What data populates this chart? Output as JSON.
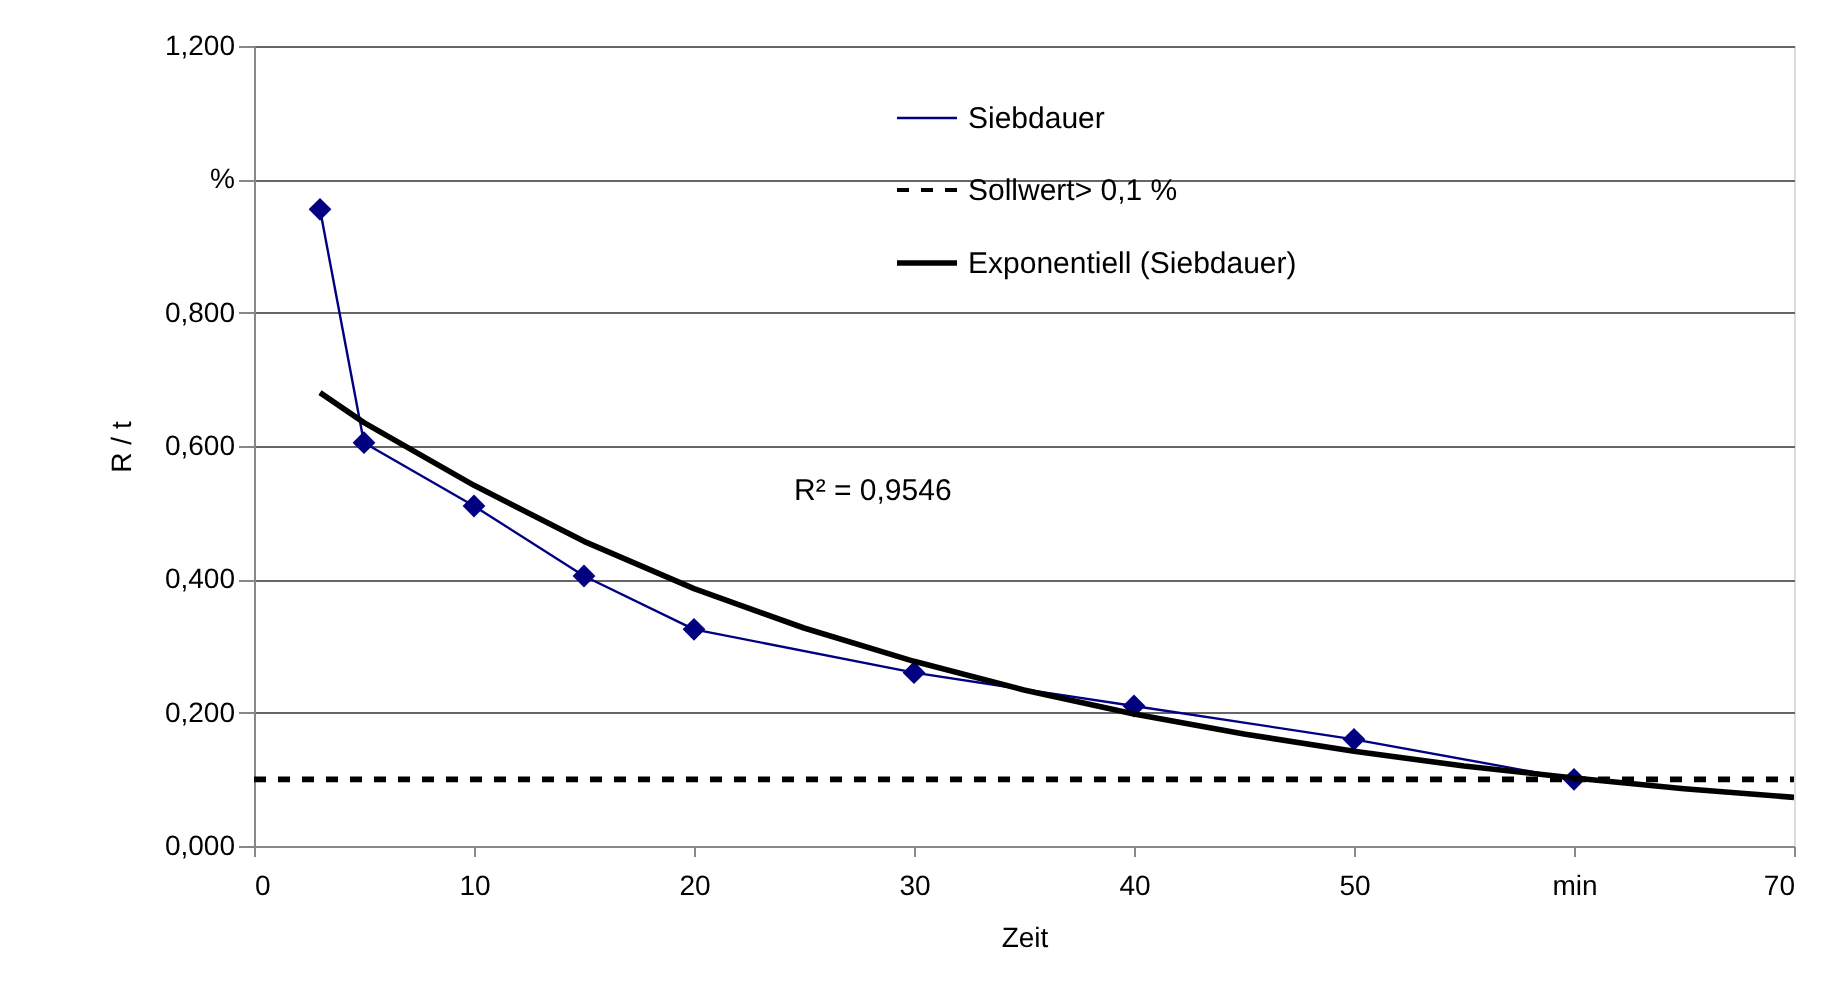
{
  "chart_data": {
    "type": "line",
    "xlabel": "Zeit",
    "ylabel": "R / t",
    "xlim": [
      0,
      70
    ],
    "xticks": [
      0,
      10,
      20,
      30,
      40,
      50,
      {
        "value": 60,
        "label": "min"
      },
      70
    ],
    "ylim": [
      0,
      1.2
    ],
    "yticks": [
      {
        "value": 0,
        "label": "0,000"
      },
      {
        "value": 0.2,
        "label": "0,200"
      },
      {
        "value": 0.4,
        "label": "0,400"
      },
      {
        "value": 0.6,
        "label": "0,600"
      },
      {
        "value": 0.8,
        "label": "0,800"
      },
      {
        "value": 1.0,
        "label": "%"
      },
      {
        "value": 1.2,
        "label": "1,200"
      }
    ],
    "grid": "y",
    "legend": "top right",
    "annotations": [
      "R² = 0,9546"
    ],
    "series": [
      {
        "name": "Siebdauer",
        "color": "#000080",
        "marker": "diamond",
        "line_style": "solid",
        "x": [
          3,
          5,
          10,
          15,
          20,
          30,
          40,
          50,
          60
        ],
        "values": [
          0.955,
          0.605,
          0.51,
          0.405,
          0.325,
          0.26,
          0.21,
          0.16,
          0.1
        ]
      },
      {
        "name": "Sollwert> 0,1 %",
        "color": "#000000",
        "marker": "none",
        "line_style": "dashed",
        "x": [
          0,
          70
        ],
        "values": [
          0.1,
          0.1
        ]
      },
      {
        "name": "Exponentiell (Siebdauer)",
        "type": "line",
        "color": "#000000",
        "marker": "none",
        "line_style": "solid",
        "x": [
          3,
          5,
          10,
          15,
          20,
          25,
          30,
          35,
          40,
          45,
          50,
          55,
          60,
          65,
          70
        ],
        "values": [
          0.68,
          0.635,
          0.541,
          0.457,
          0.386,
          0.327,
          0.277,
          0.234,
          0.198,
          0.168,
          0.142,
          0.12,
          0.102,
          0.086,
          0.073
        ]
      }
    ]
  }
}
